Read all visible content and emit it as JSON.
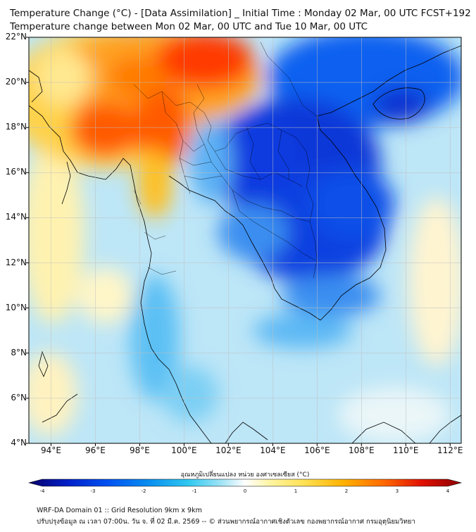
{
  "title": {
    "line1": "Temperature Change (°C) - [Data Assimilation] _ Initial Time : Monday 02 Mar, 00 UTC FCST+192",
    "line2": "Temperature change between Mon 02 Mar, 00 UTC and Tue 10 Mar, 00 UTC"
  },
  "axes": {
    "y_labels": [
      "22°N",
      "20°N",
      "18°N",
      "16°N",
      "14°N",
      "12°N",
      "10°N",
      "8°N",
      "6°N",
      "4°N"
    ],
    "x_labels": [
      "94°E",
      "96°E",
      "98°E",
      "100°E",
      "102°E",
      "104°E",
      "106°E",
      "108°E",
      "110°E",
      "112°E"
    ],
    "lat_range": [
      4,
      22
    ],
    "lon_range": [
      93,
      112.5
    ]
  },
  "colorbar": {
    "title": "อุณหภูมิเปลี่ยนแปลง หน่วย องศาเซลเซียส (°C)",
    "ticks": [
      "-4",
      "-3",
      "-2",
      "-1",
      "0",
      "1",
      "2",
      "3",
      "4"
    ],
    "range": [
      -4,
      4
    ],
    "colors": [
      "#08006a",
      "#0020c8",
      "#0050f0",
      "#0a90f0",
      "#30c8f0",
      "#a8e6f6",
      "#ffffff",
      "#fff4a0",
      "#ffe050",
      "#ffb000",
      "#ff6a00",
      "#e01000",
      "#8a0000"
    ]
  },
  "footer": {
    "line1": "WRF-DA Domain 01 :: Grid Resolution 9km x 9km",
    "line2": "ปรับปรุงข้อมูล ณ เวลา 07:00น. วัน จ. ที่ 02 มี.ค. 2569 -- © ส่วนพยากรณ์อากาศเชิงตัวเลข กองพยากรณ์อากาศ กรมอุตุนิยมวิทยา"
  }
}
